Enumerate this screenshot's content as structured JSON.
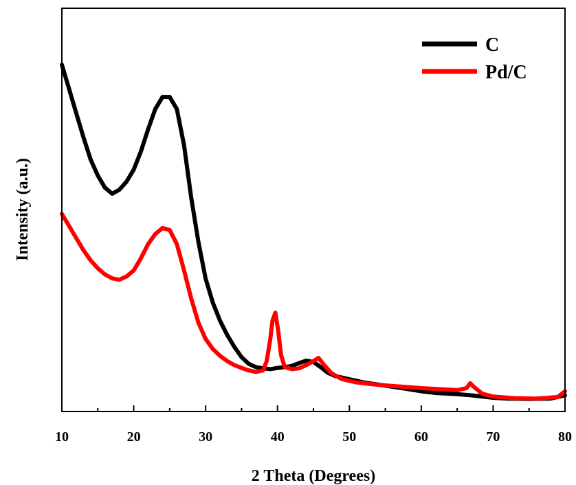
{
  "chart_data": {
    "type": "line",
    "xlabel": "2 Theta (Degrees)",
    "ylabel": "Intensity (a.u.)",
    "xlim": [
      10,
      80
    ],
    "ylim": [
      0,
      100
    ],
    "xticks": [
      10,
      20,
      30,
      40,
      50,
      60,
      70,
      80
    ],
    "grid": false,
    "legend_position": "top-right",
    "series": [
      {
        "name": "C",
        "color": "#000000",
        "x": [
          10,
          11,
          12,
          13,
          14,
          15,
          16,
          17,
          18,
          19,
          20,
          21,
          22,
          23,
          24,
          25,
          26,
          27,
          28,
          29,
          30,
          31,
          32,
          33,
          34,
          35,
          36,
          37,
          38,
          39,
          40,
          41,
          42,
          43,
          44,
          45,
          46,
          47,
          48,
          50,
          52,
          55,
          58,
          60,
          62,
          65,
          67,
          70,
          72,
          75,
          78,
          80
        ],
        "y": [
          86,
          80,
          74,
          68,
          62.5,
          58.5,
          55.5,
          54,
          55,
          57,
          60,
          64.5,
          70,
          75,
          78,
          78,
          75,
          66,
          53,
          42,
          33,
          27,
          22.5,
          19,
          16,
          13.5,
          11.8,
          11,
          10.7,
          10.5,
          10.8,
          11,
          11.3,
          12,
          12.6,
          12.3,
          11,
          9.6,
          8.8,
          8,
          7.2,
          6.4,
          5.6,
          5,
          4.6,
          4.3,
          4,
          3.4,
          3.2,
          3.1,
          3.2,
          4
        ]
      },
      {
        "name": "Pd/C",
        "color": "#ff0000",
        "x": [
          10,
          11,
          12,
          13,
          14,
          15,
          16,
          17,
          18,
          19,
          20,
          21,
          22,
          23,
          24,
          25,
          26,
          27,
          28,
          29,
          30,
          31,
          32,
          33,
          34,
          35,
          36,
          37,
          38,
          38.5,
          39,
          39.3,
          39.7,
          40.1,
          40.5,
          41,
          42,
          43,
          44,
          45,
          45.7,
          46.5,
          47.5,
          49,
          51,
          54,
          57,
          60,
          63,
          65,
          66.3,
          66.8,
          67.4,
          68.5,
          70,
          73,
          76,
          79,
          80
        ],
        "y": [
          49,
          46,
          43,
          40,
          37.5,
          35.5,
          34,
          33,
          32.7,
          33.5,
          35,
          38,
          41.5,
          44,
          45.5,
          45,
          41.5,
          35,
          28,
          22,
          18,
          15.5,
          13.8,
          12.5,
          11.5,
          10.8,
          10.2,
          9.8,
          10.2,
          12.5,
          18,
          22.5,
          24.5,
          20,
          14,
          11,
          10.5,
          10.7,
          11.5,
          12.5,
          13.3,
          11.5,
          9.5,
          8,
          7.2,
          6.6,
          6.2,
          5.8,
          5.5,
          5.3,
          5.8,
          7,
          6,
          4.4,
          3.7,
          3.3,
          3.2,
          3.6,
          5
        ]
      }
    ]
  }
}
